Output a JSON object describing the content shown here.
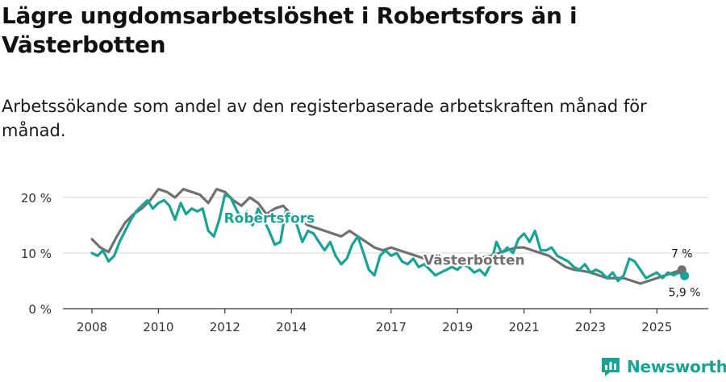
{
  "header": {
    "title": "Lägre ungdomsarbetslöshet i Robertsfors än i Västerbotten",
    "subtitle": "Arbetssökande som andel av den registerbaserade arbetskraften månad för månad."
  },
  "brand": {
    "name": "Newsworthy",
    "color": "#17a398"
  },
  "chart_data": {
    "type": "line",
    "title": "Lägre ungdomsarbetslöshet i Robertsfors än i Västerbotten",
    "xlabel": "",
    "ylabel": "",
    "xlim": [
      2008,
      2026
    ],
    "ylim": [
      0,
      20
    ],
    "y_ticks": [
      {
        "value": 0,
        "label": "0 %"
      },
      {
        "value": 10,
        "label": "10 %"
      },
      {
        "value": 20,
        "label": "20 %"
      }
    ],
    "x_ticks": [
      {
        "value": 2008,
        "label": "2008"
      },
      {
        "value": 2010,
        "label": "2010"
      },
      {
        "value": 2012,
        "label": "2012"
      },
      {
        "value": 2014,
        "label": "2014"
      },
      {
        "value": 2017,
        "label": "2017"
      },
      {
        "value": 2019,
        "label": "2019"
      },
      {
        "value": 2021,
        "label": "2021"
      },
      {
        "value": 2023,
        "label": "2023"
      },
      {
        "value": 2025,
        "label": "2025"
      }
    ],
    "grid": true,
    "series": [
      {
        "name": "Västerbotten",
        "color": "#707070",
        "end_label": "7 %",
        "x": [
          2008.0,
          2008.25,
          2008.5,
          2008.75,
          2009.0,
          2009.25,
          2009.5,
          2009.75,
          2010.0,
          2010.25,
          2010.5,
          2010.75,
          2011.0,
          2011.25,
          2011.5,
          2011.75,
          2012.0,
          2012.25,
          2012.5,
          2012.75,
          2013.0,
          2013.25,
          2013.5,
          2013.75,
          2014.0,
          2014.25,
          2014.5,
          2014.75,
          2015.0,
          2015.25,
          2015.5,
          2015.75,
          2016.0,
          2016.25,
          2016.5,
          2016.75,
          2017.0,
          2017.25,
          2017.5,
          2017.75,
          2018.0,
          2018.25,
          2018.5,
          2018.75,
          2019.0,
          2019.25,
          2019.5,
          2019.75,
          2020.0,
          2020.25,
          2020.5,
          2020.75,
          2021.0,
          2021.25,
          2021.5,
          2021.75,
          2022.0,
          2022.25,
          2022.5,
          2022.75,
          2023.0,
          2023.25,
          2023.5,
          2023.75,
          2024.0,
          2024.25,
          2024.5,
          2024.75,
          2025.0,
          2025.25,
          2025.5,
          2025.75
        ],
        "values": [
          12.5,
          11.0,
          10.2,
          13.0,
          15.5,
          17.0,
          18.0,
          19.5,
          21.5,
          21.0,
          20.0,
          21.5,
          21.0,
          20.5,
          19.0,
          21.5,
          21.0,
          19.5,
          18.5,
          20.0,
          19.0,
          17.0,
          18.0,
          18.5,
          17.0,
          16.0,
          15.0,
          14.5,
          14.0,
          13.5,
          13.0,
          14.0,
          13.0,
          12.0,
          11.0,
          10.5,
          11.0,
          10.5,
          10.0,
          9.5,
          9.0,
          8.8,
          8.5,
          8.5,
          8.5,
          8.8,
          9.0,
          9.2,
          9.5,
          10.0,
          10.5,
          11.0,
          11.0,
          10.5,
          10.0,
          9.5,
          8.5,
          7.5,
          7.0,
          6.8,
          6.5,
          6.0,
          5.5,
          5.5,
          5.5,
          5.0,
          4.5,
          5.0,
          5.5,
          6.0,
          6.5,
          7.0
        ]
      },
      {
        "name": "Robertsfors",
        "color": "#17a398",
        "end_label": "5,9 %",
        "x": [
          2008.0,
          2008.17,
          2008.33,
          2008.5,
          2008.67,
          2008.83,
          2009.0,
          2009.17,
          2009.33,
          2009.5,
          2009.67,
          2009.83,
          2010.0,
          2010.17,
          2010.33,
          2010.5,
          2010.67,
          2010.83,
          2011.0,
          2011.17,
          2011.33,
          2011.5,
          2011.67,
          2011.83,
          2012.0,
          2012.17,
          2012.33,
          2012.5,
          2012.67,
          2012.83,
          2013.0,
          2013.17,
          2013.33,
          2013.5,
          2013.67,
          2013.83,
          2014.0,
          2014.17,
          2014.33,
          2014.5,
          2014.67,
          2014.83,
          2015.0,
          2015.17,
          2015.33,
          2015.5,
          2015.67,
          2015.83,
          2016.0,
          2016.17,
          2016.33,
          2016.5,
          2016.67,
          2016.83,
          2017.0,
          2017.17,
          2017.33,
          2017.5,
          2017.67,
          2017.83,
          2018.0,
          2018.17,
          2018.33,
          2018.5,
          2018.67,
          2018.83,
          2019.0,
          2019.17,
          2019.33,
          2019.5,
          2019.67,
          2019.83,
          2020.0,
          2020.17,
          2020.33,
          2020.5,
          2020.67,
          2020.83,
          2021.0,
          2021.17,
          2021.33,
          2021.5,
          2021.67,
          2021.83,
          2022.0,
          2022.17,
          2022.33,
          2022.5,
          2022.67,
          2022.83,
          2023.0,
          2023.17,
          2023.33,
          2023.5,
          2023.67,
          2023.83,
          2024.0,
          2024.17,
          2024.33,
          2024.5,
          2024.67,
          2024.83,
          2025.0,
          2025.17,
          2025.33,
          2025.5,
          2025.67,
          2025.83
        ],
        "values": [
          10.0,
          9.5,
          10.5,
          8.5,
          9.5,
          12.0,
          14.0,
          16.0,
          17.5,
          18.5,
          19.5,
          18.0,
          19.0,
          19.5,
          18.5,
          16.0,
          19.0,
          17.0,
          18.0,
          17.5,
          18.0,
          14.0,
          13.0,
          16.0,
          20.5,
          20.0,
          18.0,
          16.0,
          17.5,
          15.0,
          18.0,
          16.0,
          14.0,
          11.5,
          12.0,
          17.5,
          17.0,
          15.0,
          12.0,
          14.0,
          13.5,
          12.0,
          10.5,
          12.0,
          9.5,
          8.0,
          9.0,
          11.5,
          13.0,
          10.0,
          7.0,
          6.0,
          9.5,
          10.5,
          9.5,
          10.0,
          8.5,
          8.0,
          9.0,
          7.5,
          8.0,
          7.0,
          6.0,
          6.5,
          7.0,
          7.5,
          7.0,
          8.0,
          7.5,
          6.5,
          7.0,
          6.0,
          8.0,
          12.0,
          10.0,
          11.0,
          10.0,
          12.5,
          13.5,
          12.0,
          14.0,
          10.5,
          10.5,
          11.0,
          9.5,
          9.0,
          8.5,
          7.5,
          7.0,
          8.0,
          6.5,
          7.0,
          6.5,
          5.5,
          6.5,
          5.0,
          6.0,
          9.0,
          8.5,
          7.0,
          5.5,
          6.0,
          6.5,
          5.5,
          6.5,
          6.0,
          6.5,
          5.9
        ]
      }
    ]
  }
}
